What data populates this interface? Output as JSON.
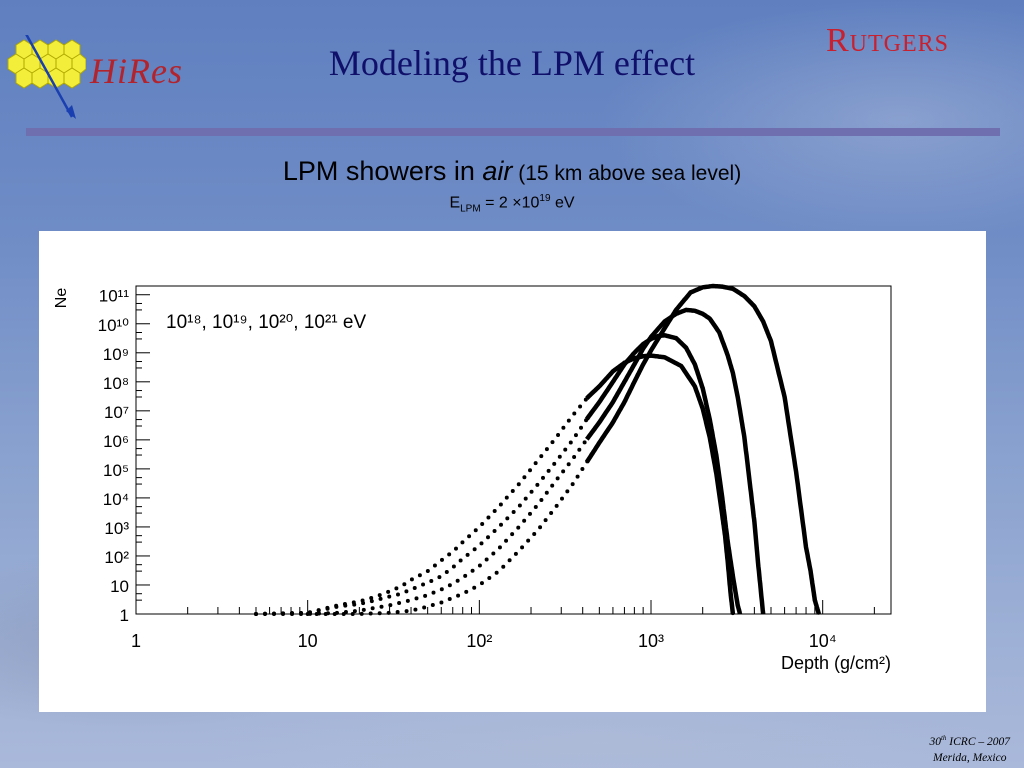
{
  "slide": {
    "title": "Modeling the LPM effect",
    "logo_left_text": "HiRes",
    "logo_right_text": "Rutgers",
    "subtitle_main": "LPM showers in ",
    "subtitle_italic": "air",
    "subtitle_paren": " (15 km above sea level)",
    "elpm_prefix": "E",
    "elpm_sub": "LPM",
    "elpm_mid": " = 2 ×10",
    "elpm_sup": "19",
    "elpm_unit": "  eV",
    "footer_line1_num": "30",
    "footer_line1_sup": "th",
    "footer_line1_rest": " ICRC – 2007",
    "footer_line2": "Merida, Mexico"
  },
  "colors": {
    "title": "#10106a",
    "divider": "#6f6fb0",
    "rutgers": "#c8202e",
    "hires": "#b3232c"
  },
  "chart_data": {
    "type": "line",
    "xscale": "log",
    "yscale": "log",
    "xlim": [
      1,
      25000
    ],
    "ylim": [
      1,
      200000000000
    ],
    "xlabel": "Depth (g/cm²)",
    "ylabel": "Ne",
    "xticks": [
      "1",
      "10",
      "10²",
      "10³",
      "10⁴"
    ],
    "yticks": [
      "1",
      "10",
      "10²",
      "10³",
      "10⁴",
      "10⁵",
      "10⁶",
      "10⁷",
      "10⁸",
      "10⁹",
      "10¹⁰",
      "10¹¹"
    ],
    "annotation": "10¹⁸, 10¹⁹, 10²⁰, 10²¹ eV",
    "series": [
      {
        "x": [
          5,
          10,
          15,
          20,
          25,
          30,
          35,
          40,
          50,
          60,
          70,
          80,
          100,
          130,
          170,
          220,
          280,
          350,
          430,
          500,
          600,
          700,
          800,
          900,
          1000,
          1200,
          1500,
          1800,
          2000,
          2200,
          2400,
          2600,
          2700,
          2800,
          2900,
          3000
        ],
        "values": [
          1,
          1.1,
          2,
          2.7,
          4,
          6,
          9,
          15,
          30,
          70,
          140,
          300,
          1000,
          5000,
          30000.0,
          200000.0,
          1200000.0,
          7000000.0,
          30000000.0,
          70000000.0,
          230000000.0,
          450000000.0,
          650000000.0,
          760000000.0,
          800000000.0,
          700000000.0,
          350000000.0,
          70000000.0,
          12000000.0,
          1200000.0,
          70000.0,
          2500,
          500,
          60,
          6,
          1
        ]
      },
      {
        "x": [
          5,
          10,
          15,
          20,
          25,
          30,
          35,
          40,
          50,
          60,
          70,
          80,
          100,
          130,
          170,
          220,
          280,
          350,
          430,
          500,
          600,
          700,
          800,
          900,
          1000,
          1100,
          1200,
          1400,
          1600,
          1800,
          2000,
          2200,
          2400,
          2600,
          2800,
          3000,
          3200,
          3300
        ],
        "values": [
          1,
          1.1,
          1.8,
          2.2,
          3,
          4,
          5,
          7,
          12,
          20,
          40,
          80,
          230,
          1000,
          5000,
          30000.0,
          180000.0,
          1000000.0,
          6000000.0,
          20000000.0,
          100000000.0,
          400000000.0,
          1000000000.0,
          2000000000.0,
          3000000000.0,
          3800000000.0,
          4000000000.0,
          3200000000.0,
          1500000000.0,
          400000000.0,
          60000000.0,
          5000000.0,
          300000.0,
          10000.0,
          300,
          20,
          2,
          1
        ]
      },
      {
        "x": [
          5,
          10,
          15,
          20,
          30,
          40,
          50,
          60,
          70,
          80,
          100,
          130,
          170,
          220,
          280,
          350,
          430,
          500,
          600,
          700,
          800,
          900,
          1000,
          1200,
          1400,
          1600,
          1800,
          2000,
          2200,
          2500,
          2800,
          3000,
          3200,
          3500,
          3800,
          4000,
          4200,
          4500
        ],
        "values": [
          1,
          1,
          1.1,
          1.3,
          2,
          3,
          4.5,
          7,
          11,
          18,
          45,
          180,
          1000,
          6000,
          40000.0,
          220000.0,
          1200000.0,
          4000000.0,
          20000000.0,
          100000000.0,
          400000000.0,
          1400000000.0,
          3500000000.0,
          12000000000.0,
          22000000000.0,
          30000000000.0,
          28000000000.0,
          22000000000.0,
          15000000000.0,
          5000000000.0,
          800000000.0,
          200000000.0,
          30000000.0,
          1200000.0,
          20000.0,
          1500,
          60,
          1
        ]
      },
      {
        "x": [
          10,
          20,
          30,
          40,
          50,
          60,
          80,
          100,
          130,
          170,
          220,
          280,
          350,
          430,
          500,
          600,
          700,
          800,
          900,
          1000,
          1200,
          1400,
          1700,
          2000,
          2300,
          2600,
          3000,
          3500,
          4000,
          4500,
          5000,
          6000,
          7000,
          8000,
          8500,
          9000,
          9500
        ],
        "values": [
          1,
          1,
          1.1,
          1.3,
          1.8,
          2.5,
          5,
          10,
          30,
          150,
          800,
          5000,
          30000.0,
          200000.0,
          800000.0,
          4000000.0,
          20000000.0,
          100000000.0,
          400000000.0,
          1200000000.0,
          7000000000.0,
          30000000000.0,
          120000000000.0,
          180000000000.0,
          200000000000.0,
          190000000000.0,
          160000000000.0,
          90000000000.0,
          40000000000.0,
          12000000000.0,
          2500000000.0,
          30000000.0,
          80000.0,
          200,
          30,
          3,
          1
        ]
      }
    ]
  }
}
